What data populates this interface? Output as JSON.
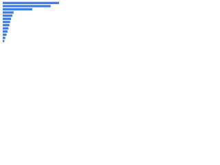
{
  "chart_data": {
    "type": "bar",
    "orientation": "horizontal",
    "categories": [
      null,
      null,
      null,
      null,
      null,
      null,
      null,
      null,
      null,
      null,
      null,
      null,
      null
    ],
    "values": [
      88,
      75,
      46,
      17,
      15,
      13,
      11.5,
      10.5,
      9,
      7.5,
      6,
      4,
      2.5
    ],
    "color": "#3d7ee6",
    "xlim": [
      0,
      100
    ]
  }
}
